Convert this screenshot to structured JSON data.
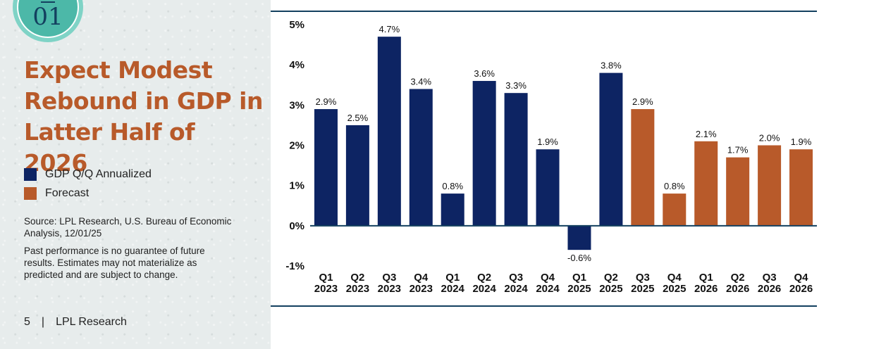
{
  "badge": {
    "number": "01"
  },
  "title": "Expect Modest\nRebound in GDP in\nLatter Half of 2026",
  "legend": [
    {
      "label": "GDP Q/Q Annualized",
      "color": "#0d2463"
    },
    {
      "label": "Forecast",
      "color": "#b85a2a"
    }
  ],
  "source": "Source: LPL Research, U.S. Bureau of Economic Analysis, 12/01/25",
  "disclaimer": "Past performance is no guarantee of future results. Estimates may not materialize as predicted and are subject to change.",
  "footer": {
    "page": "5",
    "separator": "|",
    "brand": "LPL Research"
  },
  "chart_data": {
    "type": "bar",
    "title": "Expect Modest Rebound in GDP in Latter Half of 2026",
    "categories": [
      [
        "Q1",
        "2023"
      ],
      [
        "Q2",
        "2023"
      ],
      [
        "Q3",
        "2023"
      ],
      [
        "Q4",
        "2023"
      ],
      [
        "Q1",
        "2024"
      ],
      [
        "Q2",
        "2024"
      ],
      [
        "Q3",
        "2024"
      ],
      [
        "Q4",
        "2024"
      ],
      [
        "Q1",
        "2025"
      ],
      [
        "Q2",
        "2025"
      ],
      [
        "Q3",
        "2025"
      ],
      [
        "Q4",
        "2025"
      ],
      [
        "Q1",
        "2026"
      ],
      [
        "Q2",
        "2026"
      ],
      [
        "Q3",
        "2026"
      ],
      [
        "Q4",
        "2026"
      ]
    ],
    "values": [
      2.9,
      2.5,
      4.7,
      3.4,
      0.8,
      3.6,
      3.3,
      1.9,
      -0.6,
      3.8,
      2.9,
      0.8,
      2.1,
      1.7,
      2.0,
      1.9
    ],
    "value_labels": [
      "2.9%",
      "2.5%",
      "4.7%",
      "3.4%",
      "0.8%",
      "3.6%",
      "3.3%",
      "1.9%",
      "-0.6%",
      "3.8%",
      "2.9%",
      "0.8%",
      "2.1%",
      "1.7%",
      "2.0%",
      "1.9%"
    ],
    "series_type": [
      "actual",
      "actual",
      "actual",
      "actual",
      "actual",
      "actual",
      "actual",
      "actual",
      "actual",
      "actual",
      "forecast",
      "forecast",
      "forecast",
      "forecast",
      "forecast",
      "forecast"
    ],
    "yticks": [
      5,
      4,
      3,
      2,
      1,
      0,
      -1
    ],
    "ytick_labels": [
      "5%",
      "4%",
      "3%",
      "2%",
      "1%",
      "0%",
      "-1%"
    ],
    "ylim": [
      -1,
      5
    ],
    "xlabel": "",
    "ylabel": "",
    "colors": {
      "actual": "#0d2463",
      "forecast": "#b85a2a",
      "zero_line": "#13405f"
    }
  }
}
